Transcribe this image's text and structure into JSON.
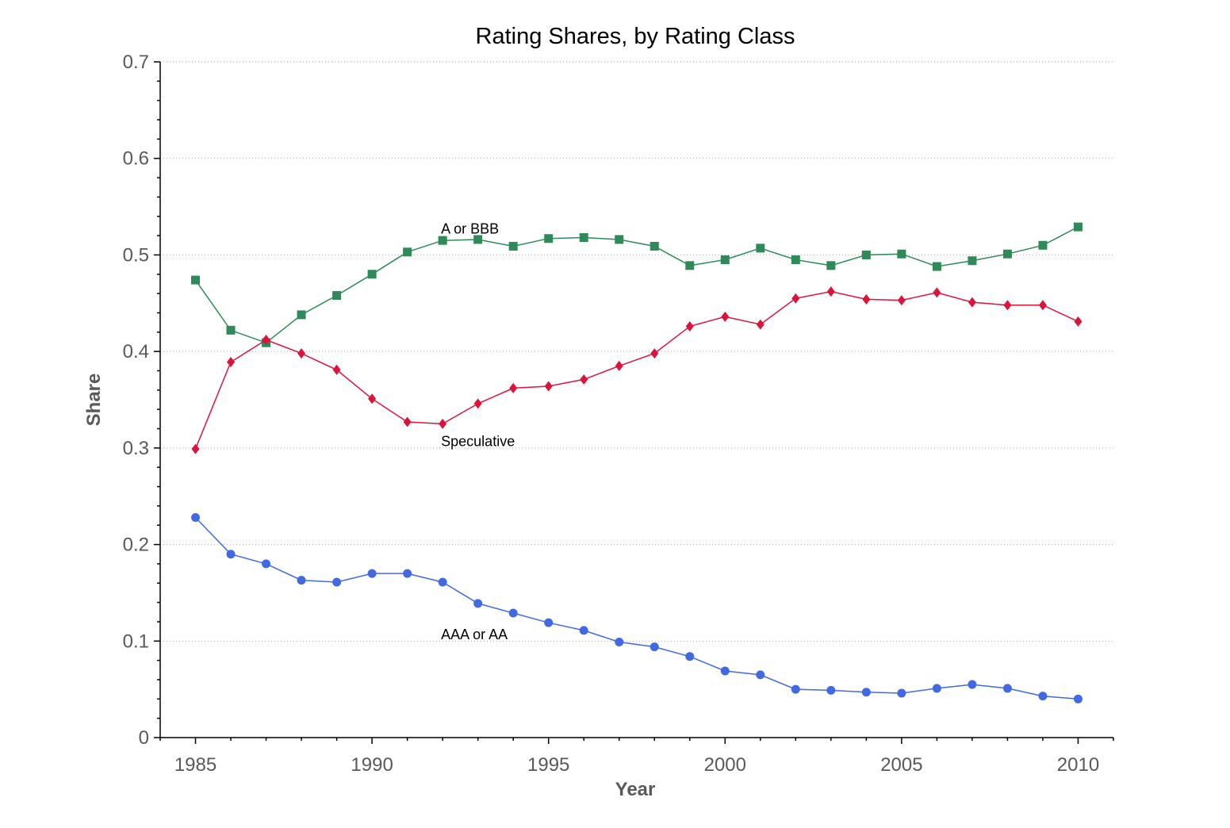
{
  "chart_data": {
    "type": "line",
    "title": "Rating Shares, by Rating Class",
    "xlabel": "Year",
    "ylabel": "Share",
    "xlim": [
      1984,
      2011
    ],
    "ylim": [
      0,
      0.7
    ],
    "x_ticks": [
      1985,
      1990,
      1995,
      2000,
      2005,
      2010
    ],
    "y_ticks": [
      0,
      0.1,
      0.2,
      0.3,
      0.4,
      0.5,
      0.6,
      0.7
    ],
    "y_tick_labels": [
      "0",
      "0.1",
      "0.2",
      "0.3",
      "0.4",
      "0.5",
      "0.6",
      "0.7"
    ],
    "grid": "horizontal dotted",
    "legend": "none",
    "x": [
      1985,
      1986,
      1987,
      1988,
      1989,
      1990,
      1991,
      1992,
      1993,
      1994,
      1995,
      1996,
      1997,
      1998,
      1999,
      2000,
      2001,
      2002,
      2003,
      2004,
      2005,
      2006,
      2007,
      2008,
      2009,
      2010
    ],
    "series": [
      {
        "name": "A or BBB",
        "color": "#2e8b57",
        "marker": "square",
        "values": [
          0.474,
          0.422,
          0.409,
          0.438,
          0.458,
          0.48,
          0.503,
          0.515,
          0.516,
          0.509,
          0.517,
          0.518,
          0.516,
          0.509,
          0.489,
          0.495,
          0.507,
          0.495,
          0.489,
          0.5,
          0.501,
          0.488,
          0.494,
          0.501,
          0.51,
          0.529
        ],
        "label_year": 1992,
        "label_value": 0.527
      },
      {
        "name": "Speculative",
        "color": "#dc143c",
        "marker": "diamond",
        "values": [
          0.299,
          0.389,
          0.412,
          0.398,
          0.381,
          0.351,
          0.327,
          0.325,
          0.346,
          0.362,
          0.364,
          0.371,
          0.385,
          0.398,
          0.426,
          0.436,
          0.428,
          0.455,
          0.462,
          0.454,
          0.453,
          0.461,
          0.451,
          0.448,
          0.448,
          0.431
        ],
        "label_year": 1992,
        "label_value": 0.307
      },
      {
        "name": "AAA or AA",
        "color": "#4169e1",
        "marker": "circle",
        "values": [
          0.228,
          0.19,
          0.18,
          0.163,
          0.161,
          0.17,
          0.17,
          0.161,
          0.139,
          0.129,
          0.119,
          0.111,
          0.099,
          0.094,
          0.084,
          0.069,
          0.065,
          0.05,
          0.049,
          0.047,
          0.046,
          0.051,
          0.055,
          0.051,
          0.043,
          0.04
        ],
        "label_year": 1992,
        "label_value": 0.107
      }
    ]
  }
}
